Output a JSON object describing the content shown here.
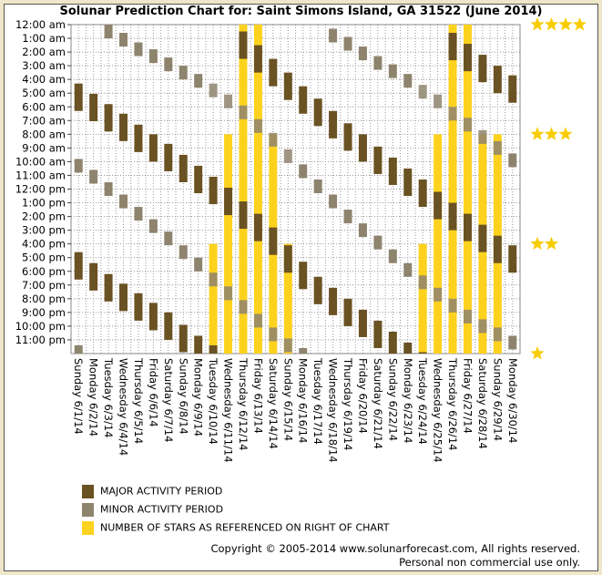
{
  "chart_data": {
    "type": "bar",
    "title": "Solunar Prediction Chart for: Saint Simons Island, GA 31522 (June 2014)",
    "y_tick_labels": [
      "12:00 am",
      "1:00 am",
      "2:00 am",
      "3:00 am",
      "4:00 am",
      "5:00 am",
      "6:00 am",
      "7:00 am",
      "8:00 am",
      "9:00 am",
      "10:00 am",
      "11:00 am",
      "12:00 pm",
      "1:00 pm",
      "2:00 pm",
      "3:00 pm",
      "4:00 pm",
      "5:00 pm",
      "6:00 pm",
      "7:00 pm",
      "8:00 pm",
      "9:00 pm",
      "10:00 pm",
      "11:00 pm"
    ],
    "ylim_hours": [
      0,
      24
    ],
    "star_scale": {
      "4": 0,
      "3": 8,
      "2": 16,
      "1": 24
    },
    "major_duration_hours": 2,
    "minor_duration_hours": 1,
    "grid": true,
    "colors": {
      "major": "#6b5223",
      "minor": "#8e846e",
      "stars": "#fdd21e",
      "star_icon": "#f7cc00"
    },
    "days": [
      {
        "label": "Sunday 6/1/14",
        "stars": 0,
        "major": [
          4.3,
          16.6
        ],
        "minor": [
          9.8,
          23.4
        ]
      },
      {
        "label": "Monday 6/2/14",
        "stars": 0,
        "major": [
          5.05,
          17.4
        ],
        "minor": [
          10.6
        ]
      },
      {
        "label": "Tuesday 6/3/14",
        "stars": 0,
        "major": [
          5.8,
          18.2
        ],
        "minor": [
          0.0,
          11.5
        ]
      },
      {
        "label": "Wednesday 6/4/14",
        "stars": 0,
        "major": [
          6.5,
          18.9
        ],
        "minor": [
          0.6,
          12.4
        ]
      },
      {
        "label": "Thursday 6/5/14",
        "stars": 0,
        "major": [
          7.3,
          19.6
        ],
        "minor": [
          1.3,
          13.3
        ]
      },
      {
        "label": "Friday 6/6/14",
        "stars": 0,
        "major": [
          8.0,
          20.3
        ],
        "minor": [
          1.8,
          14.2
        ]
      },
      {
        "label": "Saturday 6/7/14",
        "stars": 0,
        "major": [
          8.7,
          21.0
        ],
        "minor": [
          2.4,
          15.1
        ]
      },
      {
        "label": "Sunday 6/8/14",
        "stars": 0,
        "major": [
          9.5,
          21.9
        ],
        "minor": [
          3.0,
          16.1
        ]
      },
      {
        "label": "Monday 6/9/14",
        "stars": 0,
        "major": [
          10.3,
          22.7
        ],
        "minor": [
          3.6,
          17.0
        ]
      },
      {
        "label": "Tuesday 6/10/14",
        "stars": 2,
        "major": [
          11.1,
          23.4
        ],
        "minor": [
          4.3,
          18.1
        ]
      },
      {
        "label": "Wednesday 6/11/14",
        "stars": 3,
        "major": [
          11.9
        ],
        "minor": [
          5.1,
          19.1
        ]
      },
      {
        "label": "Thursday 6/12/14",
        "stars": 4,
        "major": [
          0.5,
          12.9
        ],
        "minor": [
          5.9,
          20.1
        ]
      },
      {
        "label": "Friday 6/13/14",
        "stars": 4,
        "major": [
          1.5,
          13.8
        ],
        "minor": [
          6.9,
          21.1
        ]
      },
      {
        "label": "Saturday 6/14/14",
        "stars": 3,
        "major": [
          2.5,
          14.8
        ],
        "minor": [
          7.9,
          22.1
        ]
      },
      {
        "label": "Sunday 6/15/14",
        "stars": 2,
        "major": [
          3.5,
          16.1
        ],
        "minor": [
          9.1,
          22.9
        ]
      },
      {
        "label": "Monday 6/16/14",
        "stars": 0,
        "major": [
          4.5,
          17.3
        ],
        "minor": [
          10.2,
          23.6
        ]
      },
      {
        "label": "Tuesday 6/17/14",
        "stars": 0,
        "major": [
          5.4,
          18.4
        ],
        "minor": [
          11.3
        ]
      },
      {
        "label": "Wednesday 6/18/14",
        "stars": 0,
        "major": [
          6.3,
          19.2
        ],
        "minor": [
          0.3,
          12.4
        ]
      },
      {
        "label": "Thursday 6/19/14",
        "stars": 0,
        "major": [
          7.2,
          20.0
        ],
        "minor": [
          0.9,
          13.5
        ]
      },
      {
        "label": "Friday 6/20/14",
        "stars": 0,
        "major": [
          8.0,
          20.8
        ],
        "minor": [
          1.6,
          14.5
        ]
      },
      {
        "label": "Saturday 6/21/14",
        "stars": 0,
        "major": [
          8.9,
          21.6
        ],
        "minor": [
          2.3,
          15.4
        ]
      },
      {
        "label": "Sunday 6/22/14",
        "stars": 0,
        "major": [
          9.7,
          22.4
        ],
        "minor": [
          2.9,
          16.4
        ]
      },
      {
        "label": "Monday 6/23/14",
        "stars": 0,
        "major": [
          10.5,
          23.2
        ],
        "minor": [
          3.6,
          17.4
        ]
      },
      {
        "label": "Tuesday 6/24/14",
        "stars": 2,
        "major": [
          11.3,
          23.9
        ],
        "minor": [
          4.4,
          18.3
        ]
      },
      {
        "label": "Wednesday 6/25/14",
        "stars": 3,
        "major": [
          12.2
        ],
        "minor": [
          5.1,
          19.2
        ]
      },
      {
        "label": "Thursday 6/26/14",
        "stars": 4,
        "major": [
          0.6,
          13.0
        ],
        "minor": [
          6.0,
          20.0
        ]
      },
      {
        "label": "Friday 6/27/14",
        "stars": 4,
        "major": [
          1.4,
          13.8
        ],
        "minor": [
          6.8,
          20.8
        ]
      },
      {
        "label": "Saturday 6/28/14",
        "stars": 3,
        "major": [
          2.2,
          14.6
        ],
        "minor": [
          7.7,
          21.5
        ]
      },
      {
        "label": "Sunday 6/29/14",
        "stars": 3,
        "major": [
          3.0,
          15.4
        ],
        "minor": [
          8.5,
          22.1
        ]
      },
      {
        "label": "Monday 6/30/14",
        "stars": 0,
        "major": [
          3.7,
          16.1
        ],
        "minor": [
          9.4,
          22.7
        ]
      }
    ]
  },
  "legend": {
    "major": "MAJOR ACTIVITY PERIOD",
    "minor": "MINOR ACTIVITY PERIOD",
    "stars": "NUMBER OF STARS AS REFERENCED ON RIGHT OF CHART"
  },
  "footer": {
    "copyright": "Copyright © 2005-2014 www.solunarforecast.com, All rights reserved.",
    "note": "Personal non commercial use only."
  }
}
